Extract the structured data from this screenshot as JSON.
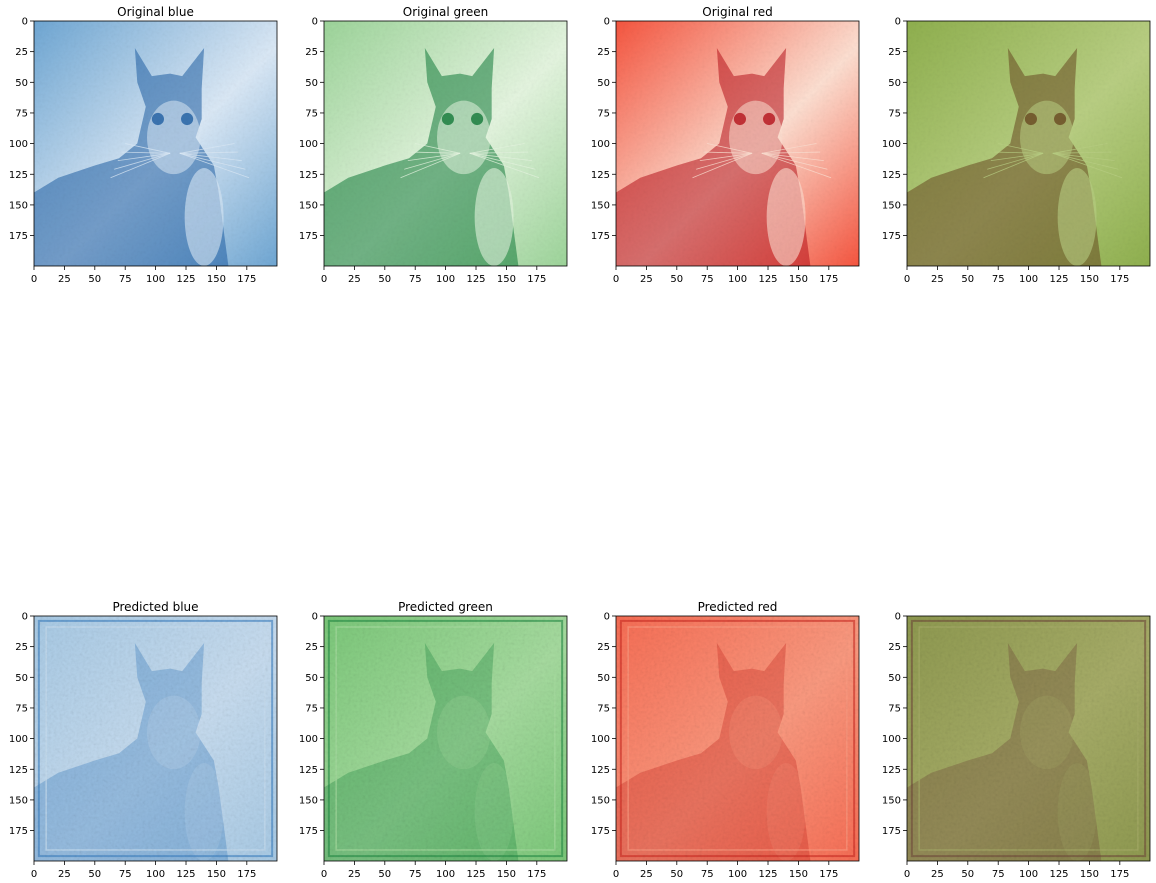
{
  "figure": {
    "panels": [
      {
        "title": "Original blue",
        "colormap": "Blues",
        "kind": "original-channel",
        "base": "#6fa7d4",
        "light": "#dbe9f6",
        "dark": "#1f5fa4"
      },
      {
        "title": "Original green",
        "colormap": "Greens",
        "kind": "original-channel",
        "base": "#9dd59a",
        "light": "#e5f5e0",
        "dark": "#137b3a"
      },
      {
        "title": "Original red",
        "colormap": "Reds",
        "kind": "original-channel",
        "base": "#f6553f",
        "light": "#fde0d2",
        "dark": "#b8131c"
      },
      {
        "title": "",
        "colormap": "rgb",
        "kind": "original-rgb",
        "base": "#8fb04e",
        "light": "#b9cf83",
        "dark": "#6a4a22"
      },
      {
        "title": "Predicted blue",
        "colormap": "Blues",
        "kind": "predicted-channel",
        "base": "#a9cbe6",
        "light": "#c8ddf0",
        "dark": "#3a7fbf"
      },
      {
        "title": "Predicted green",
        "colormap": "Greens",
        "kind": "predicted-channel",
        "base": "#7cc97a",
        "light": "#a7dca0",
        "dark": "#218b45"
      },
      {
        "title": "Predicted red",
        "colormap": "Reds",
        "kind": "predicted-channel",
        "base": "#f86e55",
        "light": "#fb9a80",
        "dark": "#cb2a22"
      },
      {
        "title": "",
        "colormap": "rgb",
        "kind": "predicted-rgb",
        "base": "#8f9a50",
        "light": "#a7ad68",
        "dark": "#6f4a3a"
      }
    ]
  },
  "chart_data": {
    "type": "heatmap",
    "description_type": "image grid",
    "image_size": [
      200,
      200
    ],
    "xlim": [
      0,
      199
    ],
    "ylim": [
      199,
      0
    ],
    "xticks": [
      "0",
      "25",
      "50",
      "75",
      "100",
      "125",
      "150",
      "175"
    ],
    "yticks": [
      "0",
      "25",
      "50",
      "75",
      "100",
      "125",
      "150",
      "175"
    ],
    "rows": 2,
    "cols": 4
  }
}
